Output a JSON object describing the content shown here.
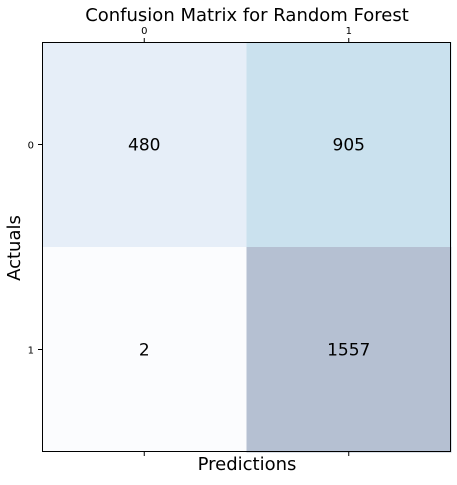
{
  "chart_data": {
    "type": "heatmap",
    "title": "Confusion Matrix for Random Forest",
    "xlabel": "Predictions",
    "ylabel": "Actuals",
    "x_categories": [
      "0",
      "1"
    ],
    "y_categories": [
      "0",
      "1"
    ],
    "values": [
      [
        480,
        905
      ],
      [
        2,
        1557
      ]
    ],
    "x_tick_position": "top",
    "xlabel_position": "bottom",
    "grid": false,
    "legend": "none",
    "cell_colors": [
      [
        "#e6eef8",
        "#cae1ee"
      ],
      [
        "#fbfcfe",
        "#b5c0d2"
      ]
    ],
    "annotation_color": "#000000"
  }
}
